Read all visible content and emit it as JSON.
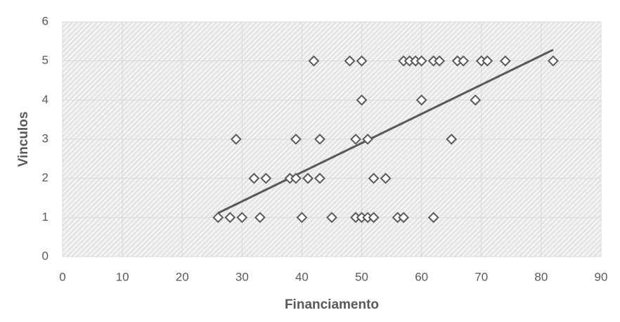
{
  "chart_data": {
    "type": "scatter",
    "x_label": "Financiamento",
    "y_label": "Vinculos",
    "x": [
      42,
      48,
      50,
      57,
      58,
      59,
      60,
      62,
      63,
      66,
      67,
      70,
      71,
      74,
      82,
      50,
      60,
      69,
      29,
      39,
      43,
      49,
      51,
      65,
      32,
      34,
      38,
      39,
      41,
      43,
      52,
      54,
      26,
      28,
      30,
      33,
      40,
      45,
      49,
      50,
      51,
      52,
      56,
      57,
      62
    ],
    "values": [
      5,
      5,
      5,
      5,
      5,
      5,
      5,
      5,
      5,
      5,
      5,
      5,
      5,
      5,
      5,
      4,
      4,
      4,
      3,
      3,
      3,
      3,
      3,
      3,
      2,
      2,
      2,
      2,
      2,
      2,
      2,
      2,
      1,
      1,
      1,
      1,
      1,
      1,
      1,
      1,
      1,
      1,
      1,
      1,
      1
    ],
    "color": "#595959",
    "xlim": [
      0,
      90
    ],
    "xticks": [
      0,
      10,
      20,
      30,
      40,
      50,
      60,
      70,
      80,
      90
    ],
    "ylim": [
      0,
      6
    ],
    "yticks": [
      0,
      1,
      2,
      3,
      4,
      5,
      6
    ],
    "grid": true,
    "trendline": true
  }
}
